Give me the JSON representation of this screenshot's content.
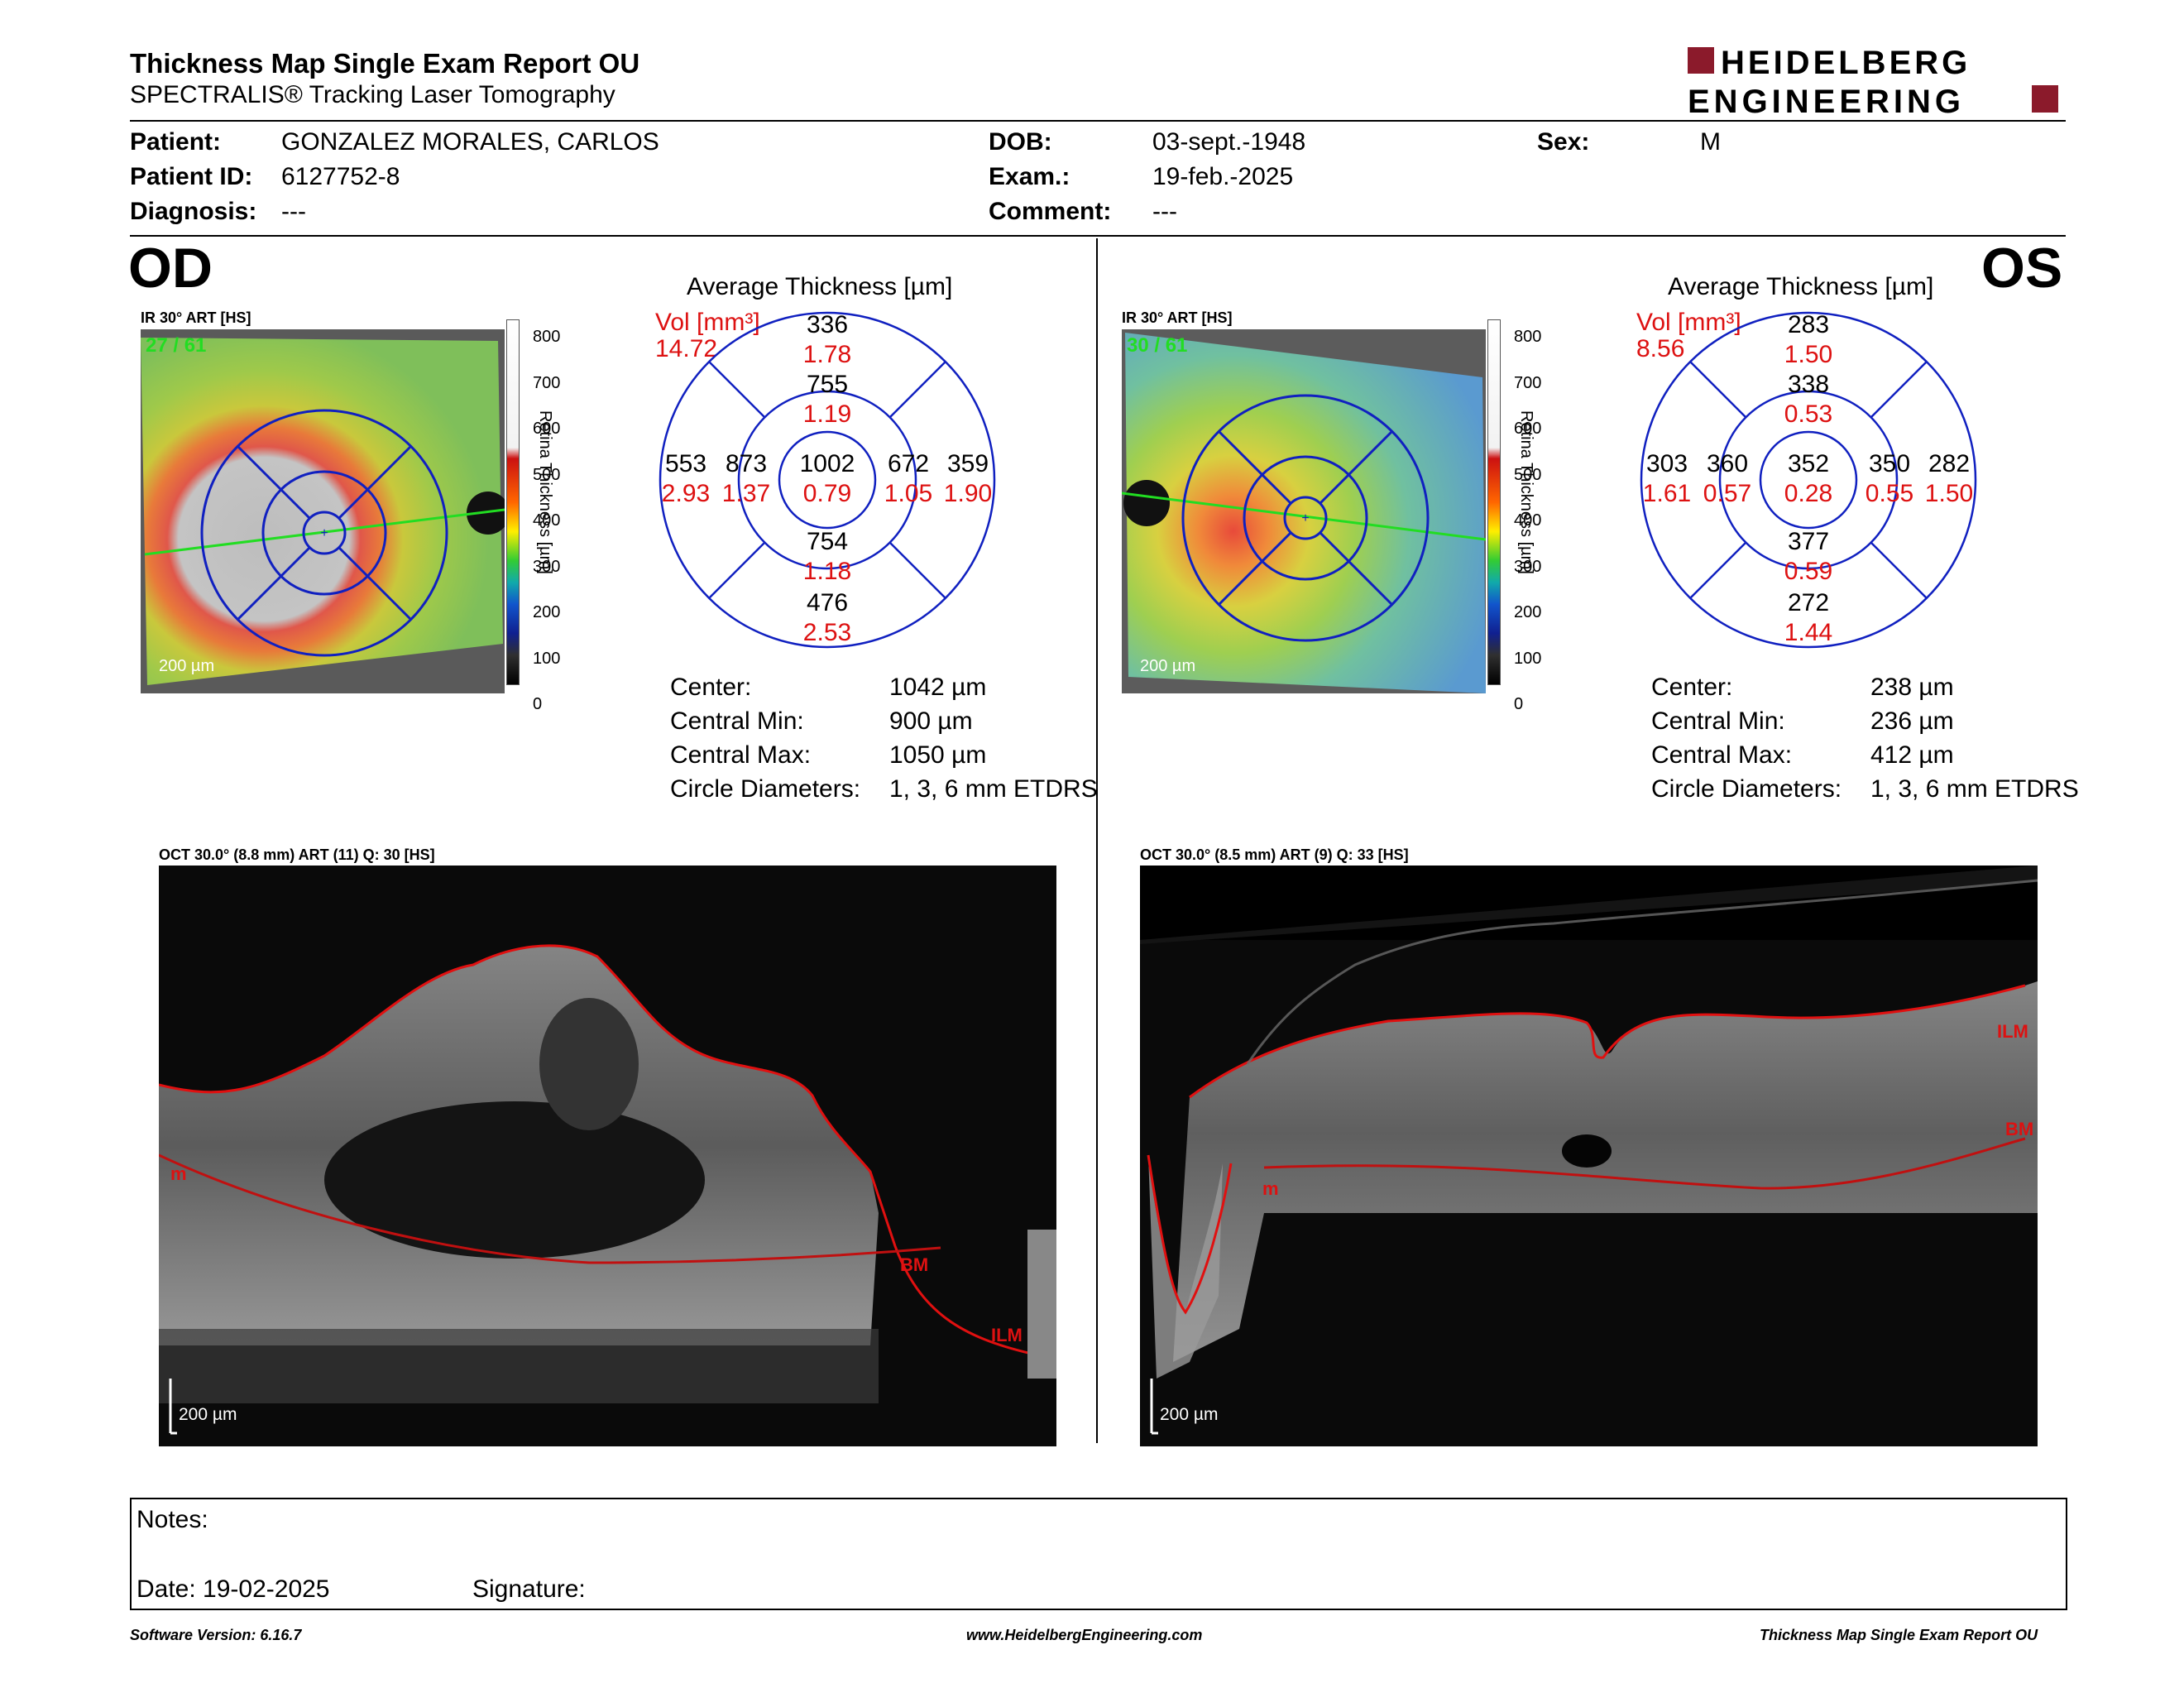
{
  "report": {
    "title": "Thickness Map Single Exam Report OU",
    "subtitle": "SPECTRALIS® Tracking Laser Tomography",
    "brand_line1": "HEIDELBERG",
    "brand_line2": "ENGINEERING",
    "brand_color": "#8b1a2b"
  },
  "patient": {
    "patient_label": "Patient:",
    "patient_value": "GONZALEZ MORALES, CARLOS",
    "id_label": "Patient ID:",
    "id_value": "6127752-8",
    "diag_label": "Diagnosis:",
    "diag_value": "---",
    "dob_label": "DOB:",
    "dob_value": "03-sept.-1948",
    "exam_label": "Exam.:",
    "exam_value": "19-feb.-2025",
    "comment_label": "Comment:",
    "comment_value": "---",
    "sex_label": "Sex:",
    "sex_value": "M"
  },
  "od": {
    "eye": "OD",
    "ir_label": "IR 30° ART [HS]",
    "frame": "27 / 61",
    "scale": "200 µm",
    "colorbar_title": "Retina  Thickness [µm]",
    "colorbar_ticks": [
      "800",
      "700",
      "600",
      "500",
      "400",
      "300",
      "200",
      "100",
      "0"
    ],
    "avg_title": "Average Thickness [µm]",
    "vol_label": "Vol [mm³]",
    "vol_value": "14.72",
    "grid": {
      "superior_outer": [
        "336",
        "1.78"
      ],
      "superior_inner": [
        "755",
        "1.19"
      ],
      "center": [
        "1002",
        "0.79"
      ],
      "nasal_outer": [
        "553",
        "2.93"
      ],
      "nasal_inner": [
        "873",
        "1.37"
      ],
      "temporal_inner": [
        "672",
        "1.05"
      ],
      "temporal_outer": [
        "359",
        "1.90"
      ],
      "inferior_inner": [
        "754",
        "1.18"
      ],
      "inferior_outer": [
        "476",
        "2.53"
      ]
    },
    "stats": [
      {
        "label": "Center:",
        "value": "1042 µm"
      },
      {
        "label": "Central Min:",
        "value": "900 µm"
      },
      {
        "label": "Central Max:",
        "value": "1050 µm"
      },
      {
        "label": "Circle Diameters:",
        "value": "1, 3, 6 mm ETDRS"
      }
    ],
    "oct_label": "OCT 30.0° (8.8 mm) ART (11) Q: 30 [HS]",
    "oct_scale": "200 µm",
    "layer_labels": [
      "m",
      "BM",
      "ILM"
    ]
  },
  "os": {
    "eye": "OS",
    "ir_label": "IR 30° ART [HS]",
    "frame": "30 / 61",
    "scale": "200 µm",
    "colorbar_title": "Retina  Thickness [µm]",
    "colorbar_ticks": [
      "800",
      "700",
      "600",
      "500",
      "400",
      "300",
      "200",
      "100",
      "0"
    ],
    "avg_title": "Average Thickness [µm]",
    "vol_label": "Vol [mm³]",
    "vol_value": "8.56",
    "grid": {
      "superior_outer": [
        "283",
        "1.50"
      ],
      "superior_inner": [
        "338",
        "0.53"
      ],
      "center": [
        "352",
        "0.28"
      ],
      "nasal_outer": [
        "282",
        "1.50"
      ],
      "nasal_inner": [
        "350",
        "0.55"
      ],
      "temporal_inner": [
        "360",
        "0.57"
      ],
      "temporal_outer": [
        "303",
        "1.61"
      ],
      "inferior_inner": [
        "377",
        "0.59"
      ],
      "inferior_outer": [
        "272",
        "1.44"
      ]
    },
    "stats": [
      {
        "label": "Center:",
        "value": "238 µm"
      },
      {
        "label": "Central Min:",
        "value": "236 µm"
      },
      {
        "label": "Central Max:",
        "value": "412 µm"
      },
      {
        "label": "Circle Diameters:",
        "value": "1, 3, 6 mm ETDRS"
      }
    ],
    "oct_label": "OCT 30.0° (8.5 mm) ART (9) Q: 33 [HS]",
    "oct_scale": "200 µm",
    "layer_labels": [
      "ILM",
      "BM",
      "m"
    ]
  },
  "notes": {
    "notes_label": "Notes:",
    "date_label": "Date: 19-02-2025",
    "signature_label": "Signature:"
  },
  "footer": {
    "software": "Software Version: 6.16.7",
    "website": "www.HeidelbergEngineering.com",
    "report_name": "Thickness Map Single Exam Report OU"
  }
}
